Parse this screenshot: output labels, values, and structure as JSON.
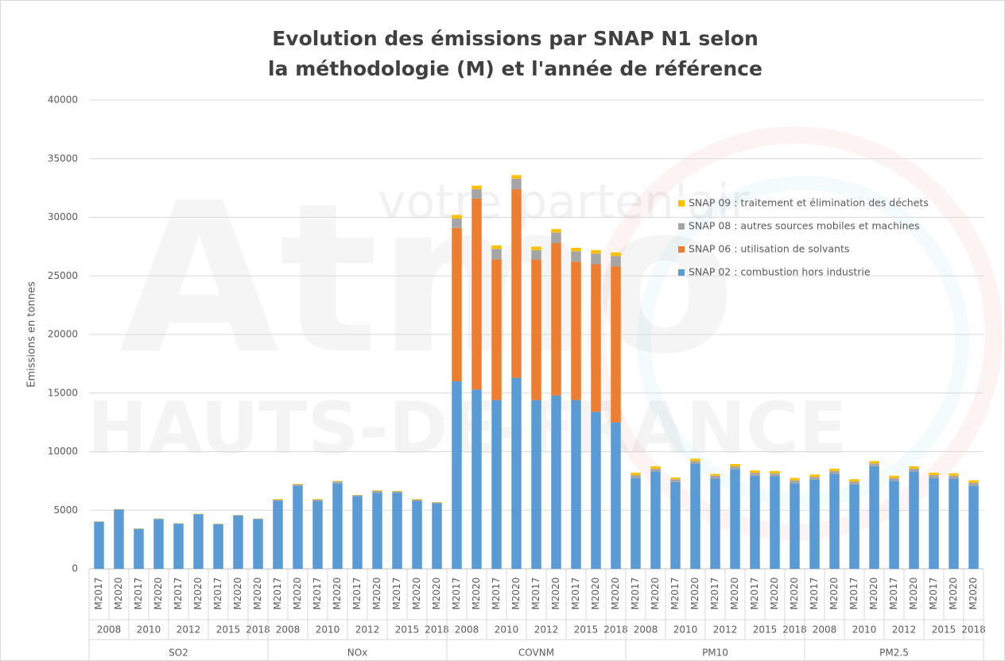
{
  "chart_data": {
    "type": "stacked_bar",
    "title": [
      "Evolution des émissions par SNAP N1 selon",
      "la méthodologie (M) et l'année de référence"
    ],
    "ylabel": "Emissions en tonnes",
    "watermark": [
      "Atmo",
      "HAUTS-DE-FRANCE",
      "votre parten'air"
    ],
    "groups": [
      {
        "name": "SO2",
        "years": [
          {
            "name": "2008",
            "methods": [
              "M2017",
              "M2020"
            ]
          },
          {
            "name": "2010",
            "methods": [
              "M2017",
              "M2020"
            ]
          },
          {
            "name": "2012",
            "methods": [
              "M2017",
              "M2020"
            ]
          },
          {
            "name": "2015",
            "methods": [
              "M2017",
              "M2020"
            ]
          },
          {
            "name": "2018",
            "methods": [
              "M2020"
            ]
          }
        ]
      },
      {
        "name": "NOx",
        "years": [
          {
            "name": "2008",
            "methods": [
              "M2017",
              "M2020"
            ]
          },
          {
            "name": "2010",
            "methods": [
              "M2017",
              "M2020"
            ]
          },
          {
            "name": "2012",
            "methods": [
              "M2017",
              "M2020"
            ]
          },
          {
            "name": "2015",
            "methods": [
              "M2017",
              "M2020"
            ]
          },
          {
            "name": "2018",
            "methods": [
              "M2020"
            ]
          }
        ]
      },
      {
        "name": "COVNM",
        "years": [
          {
            "name": "2008",
            "methods": [
              "M2017",
              "M2020"
            ]
          },
          {
            "name": "2010",
            "methods": [
              "M2017",
              "M2020"
            ]
          },
          {
            "name": "2012",
            "methods": [
              "M2017",
              "M2020"
            ]
          },
          {
            "name": "2015",
            "methods": [
              "M2017",
              "M2020"
            ]
          },
          {
            "name": "2018",
            "methods": [
              "M2020"
            ]
          }
        ]
      },
      {
        "name": "PM10",
        "years": [
          {
            "name": "2008",
            "methods": [
              "M2017",
              "M2020"
            ]
          },
          {
            "name": "2010",
            "methods": [
              "M2017",
              "M2020"
            ]
          },
          {
            "name": "2012",
            "methods": [
              "M2017",
              "M2020"
            ]
          },
          {
            "name": "2015",
            "methods": [
              "M2017",
              "M2020"
            ]
          },
          {
            "name": "2018",
            "methods": [
              "M2020"
            ]
          }
        ]
      },
      {
        "name": "PM2.5",
        "years": [
          {
            "name": "2008",
            "methods": [
              "M2017",
              "M2020"
            ]
          },
          {
            "name": "2010",
            "methods": [
              "M2017",
              "M2020"
            ]
          },
          {
            "name": "2012",
            "methods": [
              "M2017",
              "M2020"
            ]
          },
          {
            "name": "2015",
            "methods": [
              "M2017",
              "M2020"
            ]
          },
          {
            "name": "2018",
            "methods": [
              "M2020"
            ]
          }
        ]
      }
    ],
    "series": [
      {
        "name": "SNAP 02 : combustion hors industrie",
        "color": "#5b9bd5",
        "values": [
          4000,
          5050,
          3400,
          4250,
          3850,
          4650,
          3800,
          4550,
          4250,
          5800,
          7100,
          5800,
          7300,
          6200,
          6500,
          6500,
          5800,
          5600,
          16000,
          15300,
          14400,
          16300,
          14400,
          14800,
          14400,
          13400,
          12500,
          7750,
          8300,
          7400,
          8950,
          7700,
          8500,
          7950,
          7900,
          7300,
          7600,
          8100,
          7200,
          8750,
          7500,
          8300,
          7750,
          7700,
          7100
        ]
      },
      {
        "name": "SNAP 06 : utilisation de solvants",
        "color": "#ed7d31",
        "values": [
          0,
          0,
          0,
          0,
          0,
          0,
          0,
          0,
          0,
          0,
          0,
          0,
          0,
          0,
          0,
          0,
          0,
          0,
          13100,
          16300,
          12000,
          16100,
          12000,
          13000,
          11800,
          12600,
          13300,
          0,
          0,
          0,
          0,
          0,
          0,
          0,
          0,
          0,
          0,
          0,
          0,
          0,
          0,
          0,
          0,
          0,
          0
        ]
      },
      {
        "name": "SNAP 08 : autres sources mobiles et machines",
        "color": "#a5a5a5",
        "values": [
          30,
          30,
          30,
          30,
          30,
          30,
          30,
          30,
          30,
          100,
          100,
          100,
          150,
          70,
          150,
          100,
          100,
          70,
          800,
          800,
          900,
          900,
          800,
          900,
          900,
          900,
          900,
          250,
          250,
          250,
          250,
          250,
          250,
          250,
          250,
          250,
          250,
          250,
          250,
          250,
          250,
          250,
          250,
          250,
          250
        ]
      },
      {
        "name": "SNAP 09 : traitement et élimination des déchets",
        "color": "#ffc000",
        "values": [
          20,
          20,
          20,
          20,
          20,
          20,
          20,
          20,
          20,
          50,
          50,
          50,
          50,
          30,
          50,
          50,
          50,
          30,
          300,
          300,
          300,
          300,
          300,
          300,
          300,
          300,
          300,
          200,
          200,
          150,
          200,
          150,
          200,
          200,
          200,
          200,
          200,
          200,
          200,
          200,
          200,
          200,
          200,
          200,
          200
        ]
      }
    ],
    "ylim": [
      0,
      40000
    ],
    "yticks": [
      0,
      5000,
      10000,
      15000,
      20000,
      25000,
      30000,
      35000,
      40000
    ],
    "grid": true
  }
}
